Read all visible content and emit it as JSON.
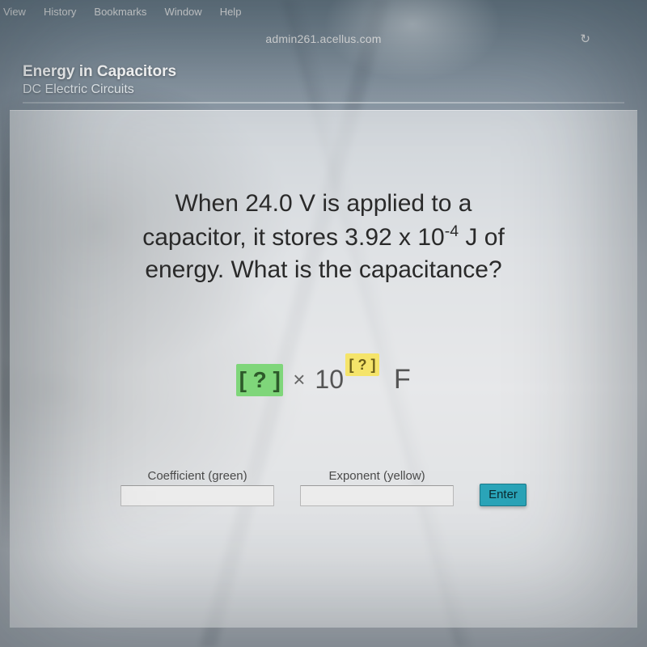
{
  "menubar": {
    "items": [
      "View",
      "History",
      "Bookmarks",
      "Window",
      "Help"
    ]
  },
  "browser": {
    "url": "admin261.acellus.com",
    "refresh_icon": "↻"
  },
  "lesson": {
    "title": "Energy in Capacitors",
    "subtitle": "DC Electric Circuits"
  },
  "question": {
    "line1": "When 24.0 V is applied to a",
    "line2_pre": "capacitor, it stores 3.92 x 10",
    "line2_exp": "-4",
    "line2_post": " J of",
    "line3": "energy. What is the capacitance?"
  },
  "answer_template": {
    "coeff_placeholder": "[ ? ]",
    "times": "×",
    "ten": "10",
    "exp_placeholder": "[ ? ]",
    "unit": "F",
    "coeff_bg": "#7fd67a",
    "exp_bg": "#f5e46a"
  },
  "inputs": {
    "coeff_label": "Coefficient (green)",
    "coeff_value": "",
    "exp_label": "Exponent (yellow)",
    "exp_value": "",
    "enter_label": "Enter"
  },
  "colors": {
    "panel_bg": "rgba(255,255,255,0.58)",
    "enter_btn": "#2aa4b8"
  }
}
